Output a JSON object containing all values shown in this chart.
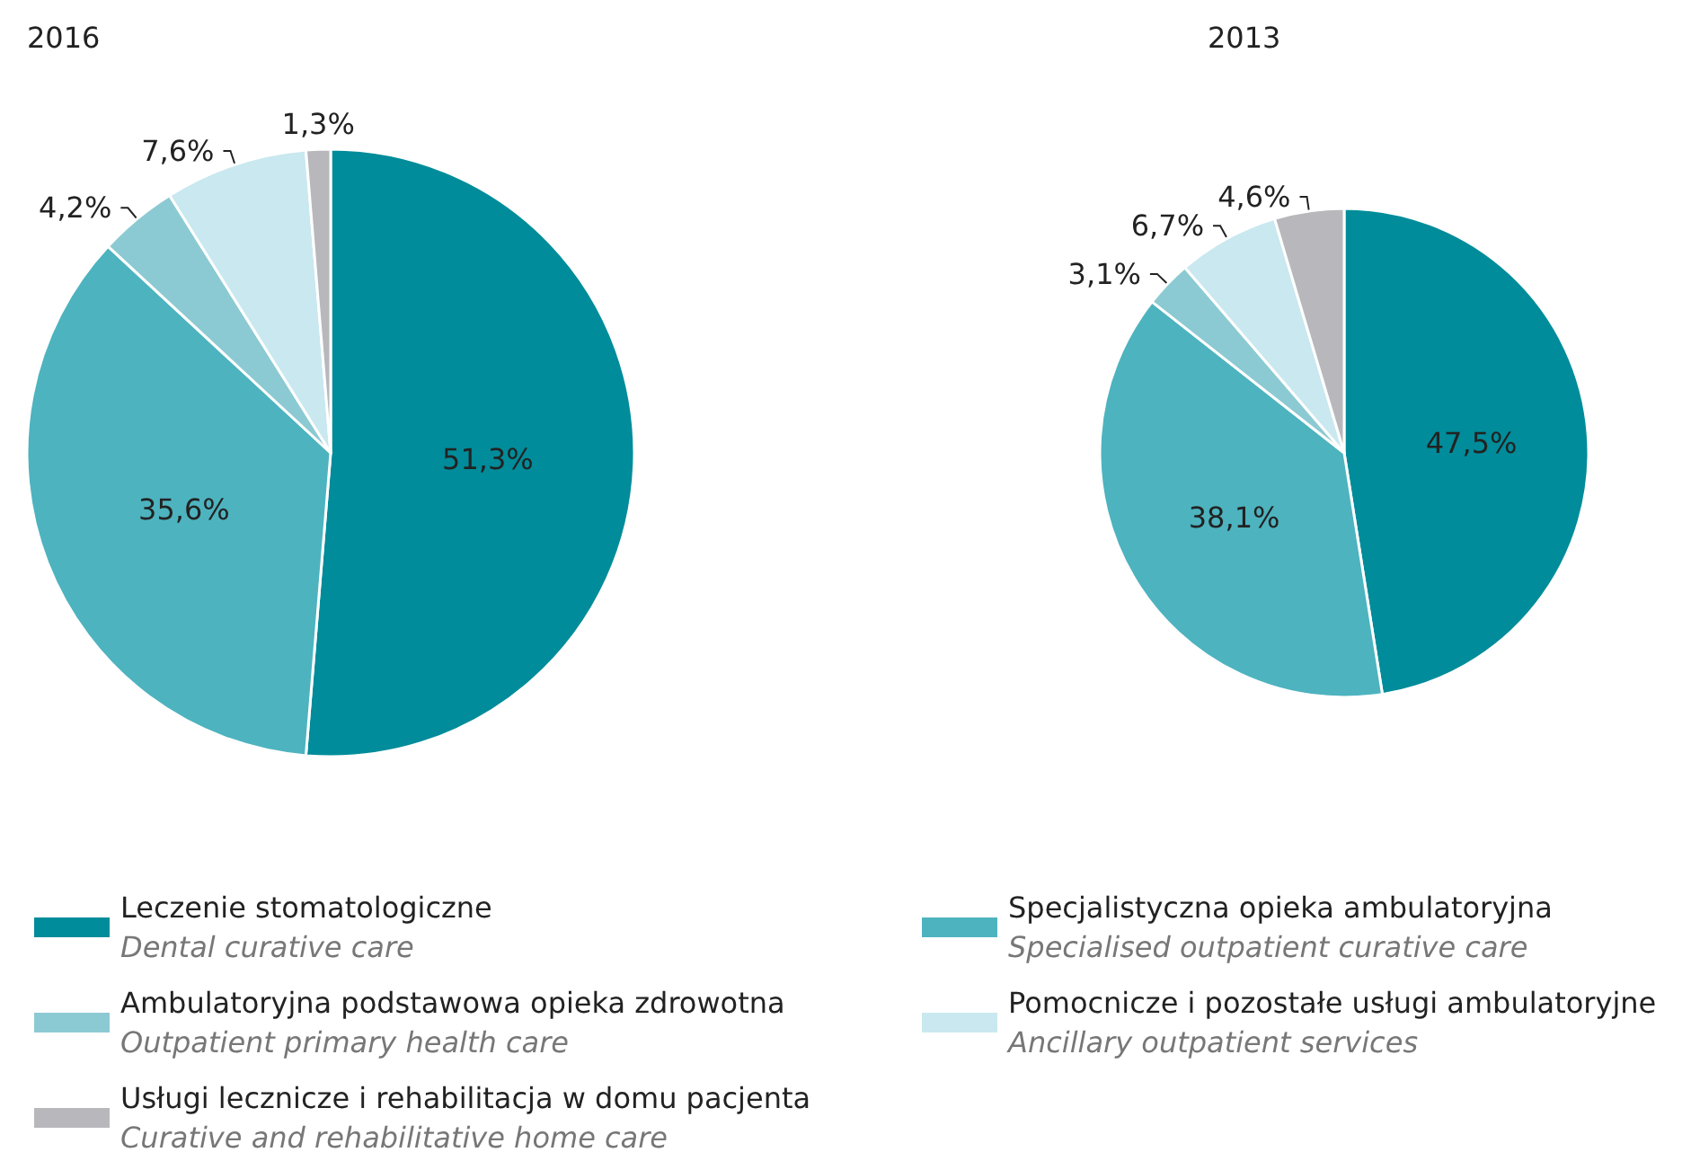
{
  "chart_data": {
    "type": "pie",
    "legend": "bottom",
    "categories": [
      "Leczenie stomatologiczne\nDental curative care",
      "Specjalistyczna opieka ambulatoryjna\nSpecialised outpatient curative care",
      "Ambulatoryjna podstawowa opieka zdrowotna\nOutpatient primary health care",
      "Pomocnicze i pozostałe usługi ambulatoryjne\nAncillary outpatient services",
      "Usługi lecznicze i rehabilitacja w domu pacjenta\nCurative and rehabilitative home care"
    ],
    "colors": [
      "#008c9a",
      "#4db3bf",
      "#8ccad3",
      "#c9e8ef",
      "#b8b8bc"
    ],
    "series": [
      {
        "name": "2016",
        "values": [
          51.3,
          35.6,
          4.2,
          7.6,
          1.3
        ],
        "value_labels": [
          "51,3%",
          "35,6%",
          "4,2%",
          "7,6%",
          "1,3%"
        ]
      },
      {
        "name": "2013",
        "values": [
          47.5,
          38.1,
          3.1,
          6.7,
          4.6
        ],
        "value_labels": [
          "47,5%",
          "38,1%",
          "3,1%",
          "6,7%",
          "4,6%"
        ]
      }
    ]
  }
}
